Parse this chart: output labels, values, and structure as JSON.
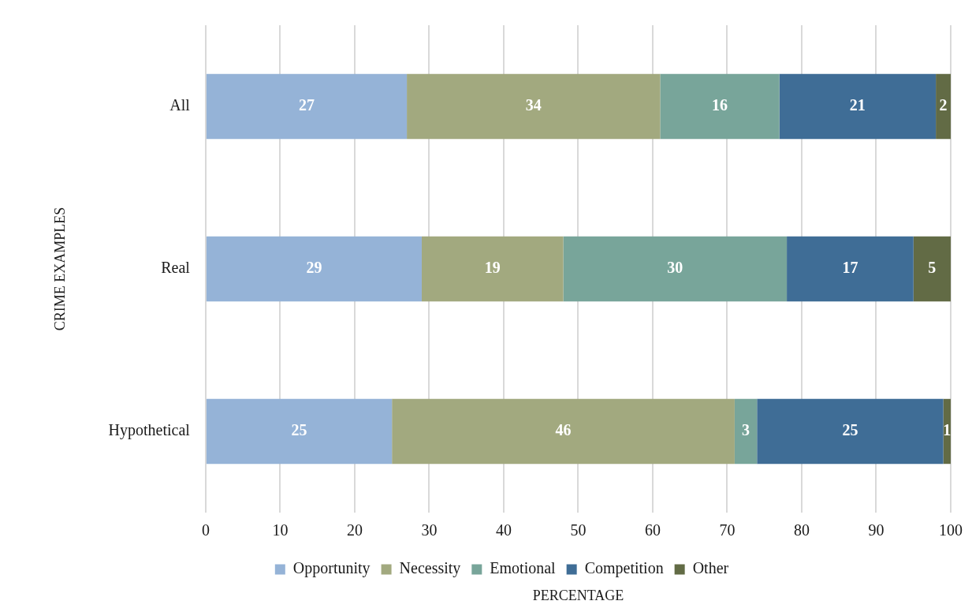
{
  "chart_data": {
    "type": "bar",
    "orientation": "horizontal",
    "stacked": true,
    "xlabel": "PERCENTAGE",
    "ylabel": "CRIME EXAMPLES",
    "categories": [
      "All",
      "Real",
      "Hypothetical"
    ],
    "series": [
      {
        "name": "Opportunity",
        "color": "#95b3d7",
        "values": [
          27,
          29,
          25
        ]
      },
      {
        "name": "Necessity",
        "color": "#a2a97f",
        "values": [
          34,
          19,
          46
        ]
      },
      {
        "name": "Emotional",
        "color": "#78a59a",
        "values": [
          16,
          30,
          3
        ]
      },
      {
        "name": "Competition",
        "color": "#3f6d96",
        "values": [
          21,
          17,
          25
        ]
      },
      {
        "name": "Other",
        "color": "#626b45",
        "values": [
          2,
          5,
          1
        ]
      }
    ],
    "xlim": [
      0,
      100
    ],
    "xticks": [
      0,
      10,
      20,
      30,
      40,
      50,
      60,
      70,
      80,
      90,
      100
    ],
    "grid": "x",
    "legend": "bottom",
    "data_labels": true
  }
}
